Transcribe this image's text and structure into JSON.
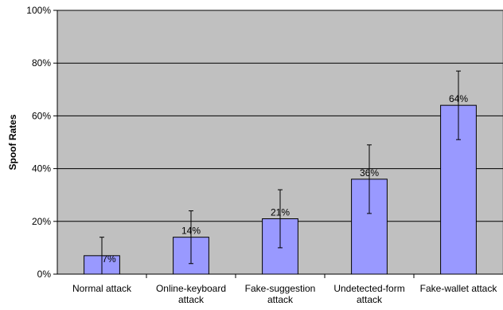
{
  "chart_data": {
    "type": "bar",
    "title": "",
    "xlabel": "",
    "ylabel": "Spoof Rates",
    "ylim": [
      0,
      100
    ],
    "yticks": [
      "0%",
      "20%",
      "40%",
      "60%",
      "80%",
      "100%"
    ],
    "ytick_values": [
      0,
      20,
      40,
      60,
      80,
      100
    ],
    "grid": true,
    "categories": [
      [
        "Normal attack"
      ],
      [
        "Online-keyboard",
        "attack"
      ],
      [
        "Fake-suggestion",
        "attack"
      ],
      [
        "Undetected-form",
        "attack"
      ],
      [
        "Fake-wallet attack"
      ]
    ],
    "values": [
      7,
      14,
      21,
      36,
      64
    ],
    "data_labels": [
      "7%",
      "14%",
      "21%",
      "36%",
      "64%"
    ],
    "error_bars": [
      {
        "low": 0,
        "high": 14
      },
      {
        "low": 4,
        "high": 24
      },
      {
        "low": 10,
        "high": 32
      },
      {
        "low": 23,
        "high": 49
      },
      {
        "low": 51,
        "high": 77
      }
    ],
    "colors": {
      "plot_background": "#c0c0c0",
      "bar_fill": "#9999ff",
      "bar_stroke": "#000000",
      "gridline": "#000000"
    }
  }
}
